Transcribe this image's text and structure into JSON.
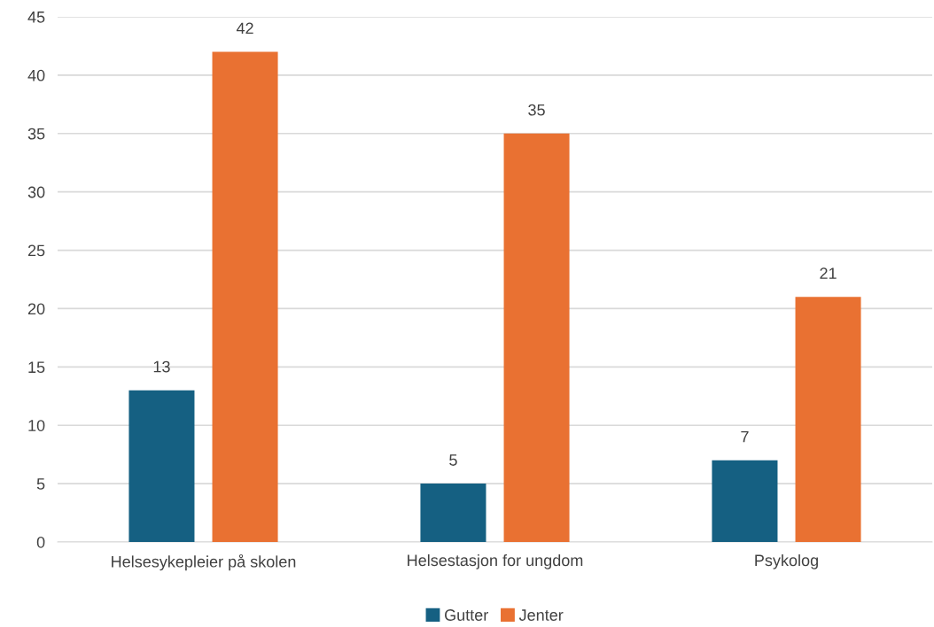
{
  "chart_data": {
    "type": "bar",
    "categories": [
      "Helsesykepleier på skolen",
      "Helsestasjon for ungdom",
      "Psykolog"
    ],
    "series": [
      {
        "name": "Gutter",
        "color": "#156082",
        "values": [
          13,
          5,
          7
        ]
      },
      {
        "name": "Jenter",
        "color": "#e97132",
        "values": [
          42,
          35,
          21
        ]
      }
    ],
    "ylim": [
      0,
      45
    ],
    "yticks": [
      0,
      5,
      10,
      15,
      20,
      25,
      30,
      35,
      40,
      45
    ],
    "grid": "y",
    "legend": "bottom",
    "data_labels": true
  }
}
